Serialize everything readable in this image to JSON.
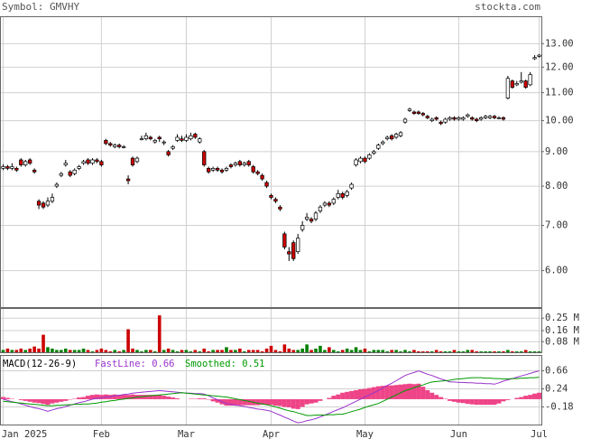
{
  "header": {
    "symbol": "Symbol: GMVHY",
    "site": "stockta.com"
  },
  "chart_data": [
    {
      "type": "candlestick",
      "log_scale": true,
      "grid": true,
      "up_color": "#ffffff",
      "down_color": "#cc0000",
      "xlim": [
        -0.6,
        120.6
      ],
      "xticks": [
        {
          "value": 0,
          "label": "Jan 2025"
        },
        {
          "value": 22,
          "label": "Feb"
        },
        {
          "value": 41,
          "label": "Mar"
        },
        {
          "value": 60,
          "label": "Apr"
        },
        {
          "value": 81,
          "label": "May"
        },
        {
          "value": 102,
          "label": "Jun"
        },
        {
          "value": 120,
          "label": "Jul"
        }
      ],
      "ylim": [
        5.29,
        14.25
      ],
      "yticks": [
        {
          "value": 13,
          "label": "13.00"
        },
        {
          "value": 12,
          "label": "12.00"
        },
        {
          "value": 11,
          "label": "11.00"
        },
        {
          "value": 10,
          "label": "10.00"
        },
        {
          "value": 9,
          "label": "9.00"
        },
        {
          "value": 8,
          "label": "8.00"
        },
        {
          "value": 7,
          "label": "7.00"
        },
        {
          "value": 6,
          "label": "6.00"
        }
      ],
      "open": [
        8.5,
        8.55,
        8.5,
        8.5,
        8.75,
        8.6,
        8.75,
        8.45,
        7.6,
        7.55,
        7.5,
        7.6,
        8.0,
        8.3,
        8.6,
        8.4,
        8.35,
        8.5,
        8.65,
        8.75,
        8.65,
        8.75,
        8.7,
        9.35,
        9.25,
        9.15,
        9.2,
        9.15,
        8.2,
        8.8,
        8.7,
        9.4,
        9.4,
        9.45,
        9.3,
        9.45,
        9.3,
        9.0,
        9.1,
        9.35,
        9.4,
        9.35,
        9.4,
        9.55,
        9.3,
        9.0,
        8.5,
        8.45,
        8.5,
        8.45,
        8.45,
        8.6,
        8.6,
        8.7,
        8.6,
        8.7,
        8.55,
        8.4,
        8.3,
        8.1,
        7.75,
        7.65,
        7.45,
        6.8,
        6.4,
        6.6,
        6.4,
        6.9,
        7.15,
        7.15,
        7.15,
        7.35,
        7.5,
        7.55,
        7.55,
        7.7,
        7.8,
        7.75,
        7.95,
        8.6,
        8.7,
        8.8,
        8.8,
        8.95,
        9.1,
        9.25,
        9.4,
        9.5,
        9.45,
        9.5,
        9.95,
        10.35,
        10.3,
        10.3,
        10.25,
        10.15,
        10.0,
        10.1,
        9.95,
        9.95,
        10.05,
        10.1,
        10.05,
        10.05,
        10.15,
        10.1,
        10.05,
        10.05,
        10.1,
        10.1,
        10.15,
        10.1,
        10.1,
        10.8,
        11.45,
        11.3,
        11.4,
        11.45,
        11.3,
        12.35,
        12.45
      ],
      "high": [
        8.62,
        8.6,
        8.65,
        8.55,
        8.8,
        8.75,
        8.8,
        8.5,
        7.65,
        7.6,
        7.7,
        7.8,
        8.1,
        8.4,
        8.75,
        8.45,
        8.5,
        8.6,
        8.75,
        8.8,
        8.8,
        8.8,
        8.75,
        9.4,
        9.3,
        9.25,
        9.25,
        9.2,
        8.3,
        8.85,
        8.85,
        9.5,
        9.6,
        9.5,
        9.4,
        9.5,
        9.35,
        9.05,
        9.2,
        9.55,
        9.5,
        9.55,
        9.6,
        9.6,
        9.45,
        9.05,
        8.55,
        8.55,
        8.55,
        8.5,
        8.55,
        8.65,
        8.7,
        8.75,
        8.7,
        8.75,
        8.6,
        8.45,
        8.35,
        8.15,
        7.8,
        7.7,
        7.5,
        6.85,
        6.5,
        6.65,
        6.8,
        7.1,
        7.3,
        7.2,
        7.35,
        7.5,
        7.6,
        7.6,
        7.7,
        7.9,
        7.85,
        7.9,
        8.1,
        8.8,
        8.85,
        8.85,
        8.95,
        9.05,
        9.25,
        9.35,
        9.5,
        9.55,
        9.6,
        9.65,
        10.1,
        10.45,
        10.35,
        10.35,
        10.3,
        10.2,
        10.1,
        10.15,
        10.0,
        10.1,
        10.15,
        10.15,
        10.15,
        10.15,
        10.25,
        10.15,
        10.1,
        10.15,
        10.2,
        10.2,
        10.2,
        10.15,
        10.15,
        11.65,
        11.5,
        11.45,
        11.8,
        11.5,
        11.8,
        12.5,
        12.55
      ],
      "low": [
        8.45,
        8.45,
        8.45,
        8.4,
        8.55,
        8.55,
        8.6,
        8.35,
        7.4,
        7.4,
        7.45,
        7.55,
        7.95,
        8.25,
        8.55,
        8.25,
        8.3,
        8.45,
        8.6,
        8.6,
        8.6,
        8.65,
        8.55,
        9.2,
        9.15,
        9.1,
        9.1,
        9.1,
        8.05,
        8.55,
        8.65,
        9.35,
        9.35,
        9.35,
        9.25,
        9.3,
        9.2,
        8.85,
        9.05,
        9.3,
        9.3,
        9.3,
        9.35,
        9.4,
        9.25,
        8.55,
        8.35,
        8.4,
        8.4,
        8.35,
        8.4,
        8.5,
        8.55,
        8.55,
        8.55,
        8.55,
        8.35,
        8.3,
        8.15,
        7.95,
        7.65,
        7.55,
        7.35,
        6.45,
        6.2,
        6.2,
        6.35,
        6.85,
        7.1,
        7.05,
        7.1,
        7.3,
        7.45,
        7.45,
        7.5,
        7.65,
        7.65,
        7.7,
        7.9,
        8.55,
        8.65,
        8.65,
        8.75,
        8.9,
        9.05,
        9.2,
        9.35,
        9.35,
        9.4,
        9.45,
        9.9,
        10.3,
        10.2,
        10.2,
        10.15,
        10.05,
        9.95,
        10.0,
        9.85,
        9.9,
        10.0,
        10.0,
        10.0,
        10.0,
        10.1,
        10.0,
        9.95,
        10.0,
        10.05,
        10.05,
        10.05,
        10.05,
        10.0,
        10.75,
        11.15,
        11.25,
        11.35,
        11.15,
        11.25,
        12.3,
        12.4
      ],
      "close": [
        8.55,
        8.5,
        8.55,
        8.45,
        8.6,
        8.7,
        8.65,
        8.4,
        7.5,
        7.45,
        7.6,
        7.7,
        8.05,
        8.35,
        8.65,
        8.3,
        8.45,
        8.55,
        8.7,
        8.65,
        8.75,
        8.7,
        8.6,
        9.25,
        9.2,
        9.2,
        9.15,
        9.15,
        8.15,
        8.6,
        8.8,
        9.4,
        9.5,
        9.4,
        9.35,
        9.4,
        9.3,
        8.9,
        9.15,
        9.45,
        9.35,
        9.45,
        9.5,
        9.45,
        9.4,
        8.6,
        8.4,
        8.5,
        8.45,
        8.4,
        8.5,
        8.55,
        8.65,
        8.6,
        8.65,
        8.6,
        8.4,
        8.35,
        8.2,
        8.0,
        7.7,
        7.6,
        7.4,
        6.5,
        6.35,
        6.25,
        6.7,
        7.0,
        7.2,
        7.1,
        7.3,
        7.45,
        7.55,
        7.5,
        7.65,
        7.8,
        7.7,
        7.85,
        8.05,
        8.75,
        8.8,
        8.7,
        8.9,
        9.0,
        9.2,
        9.3,
        9.45,
        9.4,
        9.55,
        9.6,
        10.05,
        10.4,
        10.25,
        10.25,
        10.2,
        10.1,
        10.05,
        10.05,
        9.9,
        10.05,
        10.1,
        10.05,
        10.1,
        10.1,
        10.2,
        10.05,
        10.0,
        10.1,
        10.15,
        10.15,
        10.1,
        10.1,
        10.05,
        11.55,
        11.2,
        11.35,
        11.45,
        11.2,
        11.7,
        12.4,
        12.5
      ]
    },
    {
      "type": "bar",
      "up_color": "#008000",
      "down_color": "#cc0000",
      "grid": true,
      "ylim": [
        0,
        0.32
      ],
      "yticks": [
        {
          "value": 0.25,
          "label": "0.25 M"
        },
        {
          "value": 0.16,
          "label": "0.16 M"
        },
        {
          "value": 0.08,
          "label": "0.08 M"
        }
      ],
      "values": [
        0.02,
        0.03,
        0.02,
        0.02,
        0.03,
        0.02,
        0.03,
        0.045,
        0.03,
        0.13,
        0.04,
        0.03,
        0.02,
        0.02,
        0.03,
        0.02,
        0.02,
        0.02,
        0.03,
        0.02,
        0.01,
        0.02,
        0.03,
        0.02,
        0.01,
        0.02,
        0.01,
        0.02,
        0.17,
        0.03,
        0.02,
        0.01,
        0.02,
        0.02,
        0.01,
        0.27,
        0.02,
        0.03,
        0.02,
        0.01,
        0.02,
        0.02,
        0.01,
        0.02,
        0.01,
        0.03,
        0.01,
        0.02,
        0.02,
        0.02,
        0.04,
        0.02,
        0.02,
        0.03,
        0.01,
        0.02,
        0.02,
        0.02,
        0.01,
        0.03,
        0.05,
        0.02,
        0.01,
        0.06,
        0.03,
        0.02,
        0.02,
        0.03,
        0.06,
        0.02,
        0.03,
        0.05,
        0.02,
        0.04,
        0.02,
        0.01,
        0.02,
        0.03,
        0.02,
        0.04,
        0.02,
        0.03,
        0.01,
        0.02,
        0.02,
        0.02,
        0.01,
        0.02,
        0.02,
        0.01,
        0.02,
        0.01,
        0.02,
        0.01,
        0.01,
        0.01,
        0.01,
        0.02,
        0.01,
        0.01,
        0.01,
        0.02,
        0.01,
        0.01,
        0.02,
        0.02,
        0.01,
        0.01,
        0.01,
        0.01,
        0.01,
        0.01,
        0.01,
        0.02,
        0.01,
        0.01,
        0.01,
        0.02,
        0.01,
        0.01,
        0.01
      ]
    },
    {
      "type": "line",
      "title": "MACD(12-26-9)",
      "grid": true,
      "ylim": [
        -0.6,
        1.017
      ],
      "yticks": [
        0.66,
        0.24,
        -0.18
      ],
      "series": [
        {
          "name": "FastLine: 0.66",
          "color": "#9933cc",
          "values": [
            0.0,
            -0.03,
            -0.06,
            -0.08,
            -0.11,
            -0.14,
            -0.17,
            -0.2,
            -0.22,
            -0.25,
            -0.28,
            -0.25,
            -0.22,
            -0.2,
            -0.17,
            -0.14,
            -0.11,
            -0.08,
            -0.06,
            -0.03,
            0.0,
            0.02,
            0.03,
            0.05,
            0.06,
            0.08,
            0.09,
            0.11,
            0.12,
            0.14,
            0.15,
            0.16,
            0.17,
            0.18,
            0.19,
            0.2,
            0.19,
            0.18,
            0.17,
            0.16,
            0.15,
            0.14,
            0.14,
            0.13,
            0.13,
            0.12,
            0.08,
            0.03,
            -0.01,
            -0.06,
            -0.1,
            -0.12,
            -0.14,
            -0.15,
            -0.17,
            -0.19,
            -0.21,
            -0.23,
            -0.24,
            -0.26,
            -0.28,
            -0.33,
            -0.37,
            -0.42,
            -0.46,
            -0.51,
            -0.55,
            -0.53,
            -0.5,
            -0.48,
            -0.45,
            -0.41,
            -0.37,
            -0.33,
            -0.28,
            -0.24,
            -0.2,
            -0.15,
            -0.1,
            -0.05,
            0.0,
            0.05,
            0.1,
            0.15,
            0.2,
            0.26,
            0.32,
            0.37,
            0.43,
            0.49,
            0.55,
            0.59,
            0.62,
            0.66,
            0.62,
            0.58,
            0.55,
            0.51,
            0.47,
            0.44,
            0.4,
            0.4,
            0.39,
            0.39,
            0.38,
            0.38,
            0.37,
            0.37,
            0.36,
            0.36,
            0.35,
            0.38,
            0.42,
            0.45,
            0.48,
            0.51,
            0.54,
            0.57,
            0.6,
            0.63,
            0.66
          ]
        },
        {
          "name": "Smoothed: 0.51",
          "color": "#009900",
          "values": [
            -0.05,
            -0.06,
            -0.07,
            -0.08,
            -0.09,
            -0.1,
            -0.11,
            -0.12,
            -0.13,
            -0.14,
            -0.15,
            -0.15,
            -0.14,
            -0.14,
            -0.13,
            -0.13,
            -0.12,
            -0.12,
            -0.11,
            -0.11,
            -0.1,
            -0.09,
            -0.07,
            -0.06,
            -0.04,
            -0.03,
            -0.01,
            0.0,
            0.02,
            0.03,
            0.05,
            0.06,
            0.07,
            0.08,
            0.09,
            0.1,
            0.11,
            0.12,
            0.13,
            0.14,
            0.15,
            0.14,
            0.13,
            0.12,
            0.11,
            0.1,
            0.09,
            0.08,
            0.07,
            0.06,
            0.05,
            0.03,
            0.01,
            -0.01,
            -0.03,
            -0.05,
            -0.07,
            -0.09,
            -0.11,
            -0.13,
            -0.15,
            -0.18,
            -0.21,
            -0.24,
            -0.27,
            -0.29,
            -0.32,
            -0.35,
            -0.38,
            -0.38,
            -0.37,
            -0.37,
            -0.37,
            -0.36,
            -0.36,
            -0.35,
            -0.35,
            -0.32,
            -0.29,
            -0.26,
            -0.23,
            -0.19,
            -0.16,
            -0.13,
            -0.1,
            -0.05,
            0.0,
            0.05,
            0.1,
            0.15,
            0.2,
            0.23,
            0.27,
            0.3,
            0.33,
            0.37,
            0.4,
            0.41,
            0.42,
            0.43,
            0.44,
            0.46,
            0.47,
            0.48,
            0.49,
            0.5,
            0.5,
            0.5,
            0.49,
            0.49,
            0.48,
            0.48,
            0.47,
            0.47,
            0.48,
            0.48,
            0.49,
            0.49,
            0.5,
            0.5,
            0.51
          ]
        },
        {
          "type": "bar",
          "color": "#ee4488",
          "values": [
            0.05,
            0.03,
            0.01,
            0.0,
            -0.02,
            -0.04,
            -0.06,
            -0.08,
            -0.09,
            -0.11,
            -0.13,
            -0.1,
            -0.08,
            -0.06,
            -0.04,
            -0.01,
            0.01,
            0.04,
            0.05,
            0.08,
            0.1,
            0.11,
            0.1,
            0.11,
            0.1,
            0.11,
            0.1,
            0.11,
            0.1,
            0.11,
            0.1,
            0.1,
            0.1,
            0.1,
            0.1,
            0.1,
            0.08,
            0.06,
            0.04,
            0.02,
            0.0,
            0.0,
            0.01,
            0.01,
            0.02,
            0.02,
            -0.01,
            -0.05,
            -0.08,
            -0.12,
            -0.15,
            -0.15,
            -0.15,
            -0.14,
            -0.14,
            -0.14,
            -0.14,
            -0.14,
            -0.13,
            -0.13,
            -0.13,
            -0.15,
            -0.16,
            -0.18,
            -0.19,
            -0.22,
            -0.23,
            -0.18,
            -0.12,
            -0.1,
            -0.08,
            -0.04,
            0.0,
            0.03,
            0.08,
            0.11,
            0.15,
            0.17,
            0.19,
            0.21,
            0.23,
            0.24,
            0.26,
            0.28,
            0.3,
            0.31,
            0.32,
            0.32,
            0.33,
            0.34,
            0.35,
            0.36,
            0.35,
            0.36,
            0.29,
            0.21,
            0.15,
            0.1,
            0.05,
            0.01,
            -0.04,
            -0.06,
            -0.08,
            -0.09,
            -0.11,
            -0.12,
            -0.13,
            -0.13,
            -0.13,
            -0.13,
            -0.13,
            -0.1,
            -0.05,
            -0.02,
            0.0,
            0.03,
            0.05,
            0.08,
            0.1,
            0.13,
            0.15
          ]
        }
      ]
    }
  ]
}
